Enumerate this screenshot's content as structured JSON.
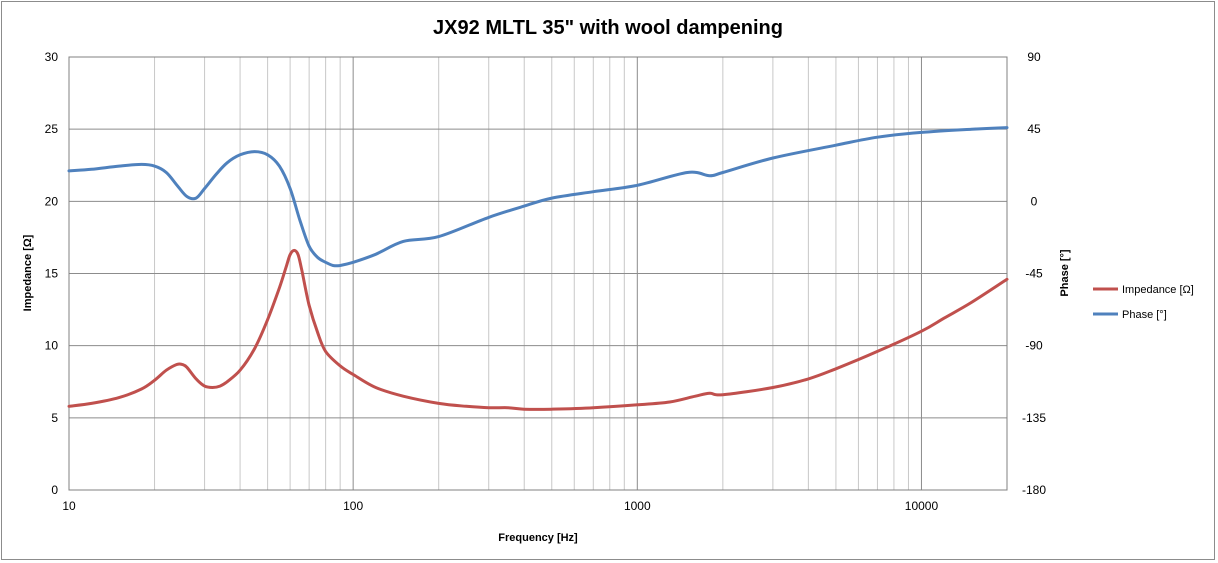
{
  "chart_data": {
    "type": "line",
    "title": "JX92 MLTL 35\" with wool dampening",
    "xlabel": "Frequency [Hz]",
    "ylabel": "Impedance [Ω]",
    "y2label": "Phase [°]",
    "x_scale": "log",
    "xlim": [
      10,
      20000
    ],
    "ylim": [
      0,
      30
    ],
    "y2lim": [
      -180,
      90
    ],
    "x_ticks": [
      10,
      100,
      1000,
      10000
    ],
    "y_ticks": [
      0,
      5,
      10,
      15,
      20,
      25,
      30
    ],
    "y2_ticks": [
      -180,
      -135,
      -90,
      -45,
      0,
      45,
      90
    ],
    "grid": true,
    "legend_position": "right",
    "series": [
      {
        "name": "Impedance [Ω]",
        "axis": "left",
        "color": "#c0504d",
        "x": [
          10,
          12,
          15,
          18,
          20,
          22,
          24,
          25,
          26,
          28,
          30,
          32,
          34,
          36,
          40,
          45,
          50,
          55,
          58,
          60,
          62,
          64,
          66,
          70,
          75,
          80,
          90,
          100,
          120,
          150,
          200,
          250,
          300,
          350,
          400,
          500,
          700,
          1000,
          1300,
          1600,
          1800,
          2000,
          3000,
          4000,
          5000,
          7000,
          10000,
          12000,
          15000,
          20000
        ],
        "values": [
          5.8,
          6.0,
          6.4,
          7.0,
          7.6,
          8.3,
          8.7,
          8.7,
          8.5,
          7.7,
          7.2,
          7.1,
          7.2,
          7.5,
          8.3,
          9.8,
          11.8,
          14.0,
          15.4,
          16.3,
          16.6,
          16.3,
          15.2,
          12.8,
          10.9,
          9.6,
          8.6,
          8.0,
          7.1,
          6.5,
          6.0,
          5.8,
          5.7,
          5.7,
          5.6,
          5.6,
          5.7,
          5.9,
          6.1,
          6.5,
          6.7,
          6.6,
          7.1,
          7.7,
          8.4,
          9.6,
          11.0,
          11.9,
          13.0,
          14.6
        ]
      },
      {
        "name": "Phase [°]",
        "axis": "right",
        "color": "#4f81bd",
        "x": [
          10,
          12,
          15,
          18,
          20,
          22,
          24,
          26,
          28,
          30,
          33,
          36,
          40,
          45,
          50,
          55,
          60,
          65,
          70,
          75,
          80,
          85,
          90,
          100,
          120,
          150,
          200,
          300,
          400,
          500,
          700,
          1000,
          1500,
          1800,
          2000,
          3000,
          5000,
          7000,
          10000,
          15000,
          20000
        ],
        "values": [
          19,
          20,
          22,
          23,
          22,
          18,
          10,
          3,
          2,
          8,
          17,
          24,
          29,
          31,
          29,
          22,
          8,
          -12,
          -28,
          -35,
          -38,
          -40,
          -40,
          -38,
          -33,
          -25,
          -22,
          -10,
          -3,
          2,
          6,
          10,
          18,
          16,
          18,
          27,
          35,
          40,
          43,
          45,
          46
        ]
      }
    ]
  }
}
